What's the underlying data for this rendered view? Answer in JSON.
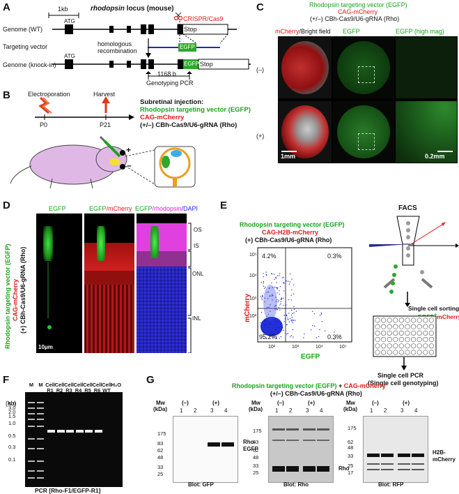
{
  "panels": {
    "A": {
      "label": "A",
      "scale": "1kb",
      "title_italic": "rhodopsin",
      "title_rest": "locus (mouse)",
      "crispr": "CRISPR/Cas9",
      "row1": "Genome (WT)",
      "row2": "Targeting vector",
      "row3": "Genome (knock-in)",
      "atg": "ATG",
      "stop": "Stop",
      "egfp": "EGFP",
      "hr": "homologous\nrecombination",
      "hr1": "homologous",
      "hr2": "recombination",
      "bp": "1168 b",
      "pcr": "Genotyping PCR"
    },
    "B": {
      "label": "B",
      "electroporation": "Electroporation",
      "harvest": "Harvest",
      "p0": "P0",
      "p21": "P21",
      "inj_title": "Subretinal injection:",
      "inj1": "Rhodopsin targeting vector (EGFP)",
      "inj2": "CAG-mCherry",
      "inj3": "(+/–) CBh-Cas9/U6-gRNA (Rho)",
      "plus": "+",
      "minus": "–"
    },
    "C": {
      "label": "C",
      "h1": "Rhodopsin targeting vector (EGFP)",
      "h2": "CAG-mCherry",
      "h3": "(+/–) CBh-Cas9/U6-gRNA (Rho)",
      "col1": "mCherry",
      "col1b": "/Bright field",
      "col2": "EGFP",
      "col3": "EGFP (high mag)",
      "row_minus": "(–)",
      "row_plus": "(+)",
      "scale1": "1mm",
      "scale2": "0.2mm"
    },
    "D": {
      "label": "D",
      "c1": "EGFP",
      "c2a": "EGFP",
      "c2b": "/mCherry",
      "c3a": "EGFP",
      "c3b": "/rhodopsin",
      "c3c": "/DAPI",
      "side1": "Rhodopsin targeting vector (EGFP)",
      "side2": "CAG-mCherry",
      "side3": "(+) CBh-Cas9/U6-gRNA (Rho)",
      "os": "OS",
      "is": "IS",
      "onl": "ONL",
      "inl": "INL",
      "scale": "10μm"
    },
    "E": {
      "label": "E",
      "t1": "Rhodopsin targeting vector (EGFP)",
      "t2": "CAG-H2B-mCherry",
      "t3": "(+) CBh-Cas9/U6-gRNA (Rho)",
      "ylabel": "mCherry",
      "xlabel": "EGFP",
      "q_ul": "4.2%",
      "q_ur": "0.3%",
      "q_ll": "95.2%",
      "q_lr": "0.3%",
      "facs": "FACS",
      "sort1": "Single cell sorting",
      "sort2a": "EGFP",
      "sort2b": "mCherry",
      "pcr1": "Single cell PCR",
      "pcr2": "(Single cell genotyping)",
      "yticks": [
        "10²",
        "10³",
        "10⁴",
        "10⁵"
      ],
      "xticks": [
        "10²",
        "10³",
        "10⁴",
        "10⁵"
      ]
    },
    "F": {
      "label": "F",
      "kb": "(kb)",
      "lanes": [
        "M",
        "M",
        "Cell R1",
        "Cell R2",
        "Cell R3",
        "Cell R4",
        "Cell R5",
        "Cell R6",
        "Cell WT",
        "H₂O"
      ],
      "marker": [
        "5.0",
        "3.0",
        "2.0",
        "1.5",
        "1.0",
        "0.5",
        "0.3",
        "0.1"
      ],
      "caption": "PCR [Rho-F1/EGFP-R1]"
    },
    "G": {
      "label": "G",
      "h1a": "Rhodopsin targeting vector (EGFP)",
      "h1b": " + ",
      "h1c": "CAG-mCherry",
      "h2": "(+/–) CBh-Cas9/U6-gRNA (Rho)",
      "mw": "Mw",
      "kda": "(kDa)",
      "minus": "(–)",
      "plus": "(+)",
      "lanes": [
        "1",
        "2",
        "3",
        "4"
      ],
      "blot1": {
        "caption": "Blot: GFP",
        "band": "Rho-\nEGFP",
        "band1": "Rho-",
        "band2": "EGFP",
        "mw": [
          "175",
          "83",
          "62",
          "48",
          "33",
          "25"
        ]
      },
      "blot2": {
        "caption": "Blot: Rho",
        "band": "Rho",
        "mw": [
          "175",
          "83",
          "62",
          "48",
          "33",
          "25"
        ]
      },
      "blot3": {
        "caption": "Blot: RFP",
        "band1": "H2B-",
        "band2": "mCherry",
        "mw": [
          "175",
          "62",
          "48",
          "33",
          "25",
          "17"
        ]
      }
    }
  },
  "colors": {
    "green": "#1aa31a",
    "red": "#e01818",
    "magenta": "#e020e0",
    "blue": "#2222ff"
  }
}
